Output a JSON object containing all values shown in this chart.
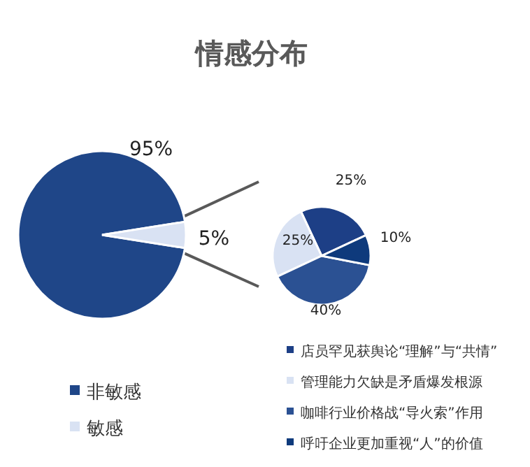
{
  "chart_data": [
    {
      "type": "pie",
      "title": "情感分布",
      "categories": [
        "非敏感",
        "敏感"
      ],
      "values": [
        95,
        5
      ],
      "value_labels": [
        "95%",
        "5%"
      ],
      "colors": [
        "#1f4688",
        "#d9e2f3"
      ],
      "legend": "bottom left"
    },
    {
      "type": "pie",
      "categories": [
        "店员罕见获舆论“理解”与“共情”",
        "管理能力欠缺是矛盾爆发根源",
        "咖啡行业价格战“导火索”作用",
        "呼吁企业更加重视“人”的价值"
      ],
      "values": [
        25,
        25,
        40,
        10
      ],
      "value_labels": [
        "25%",
        "25%",
        "40%",
        "10%"
      ],
      "colors": [
        "#1d3f86",
        "#d9e2f3",
        "#2b5193",
        "#0e3a7c"
      ],
      "legend": "bottom right"
    }
  ]
}
